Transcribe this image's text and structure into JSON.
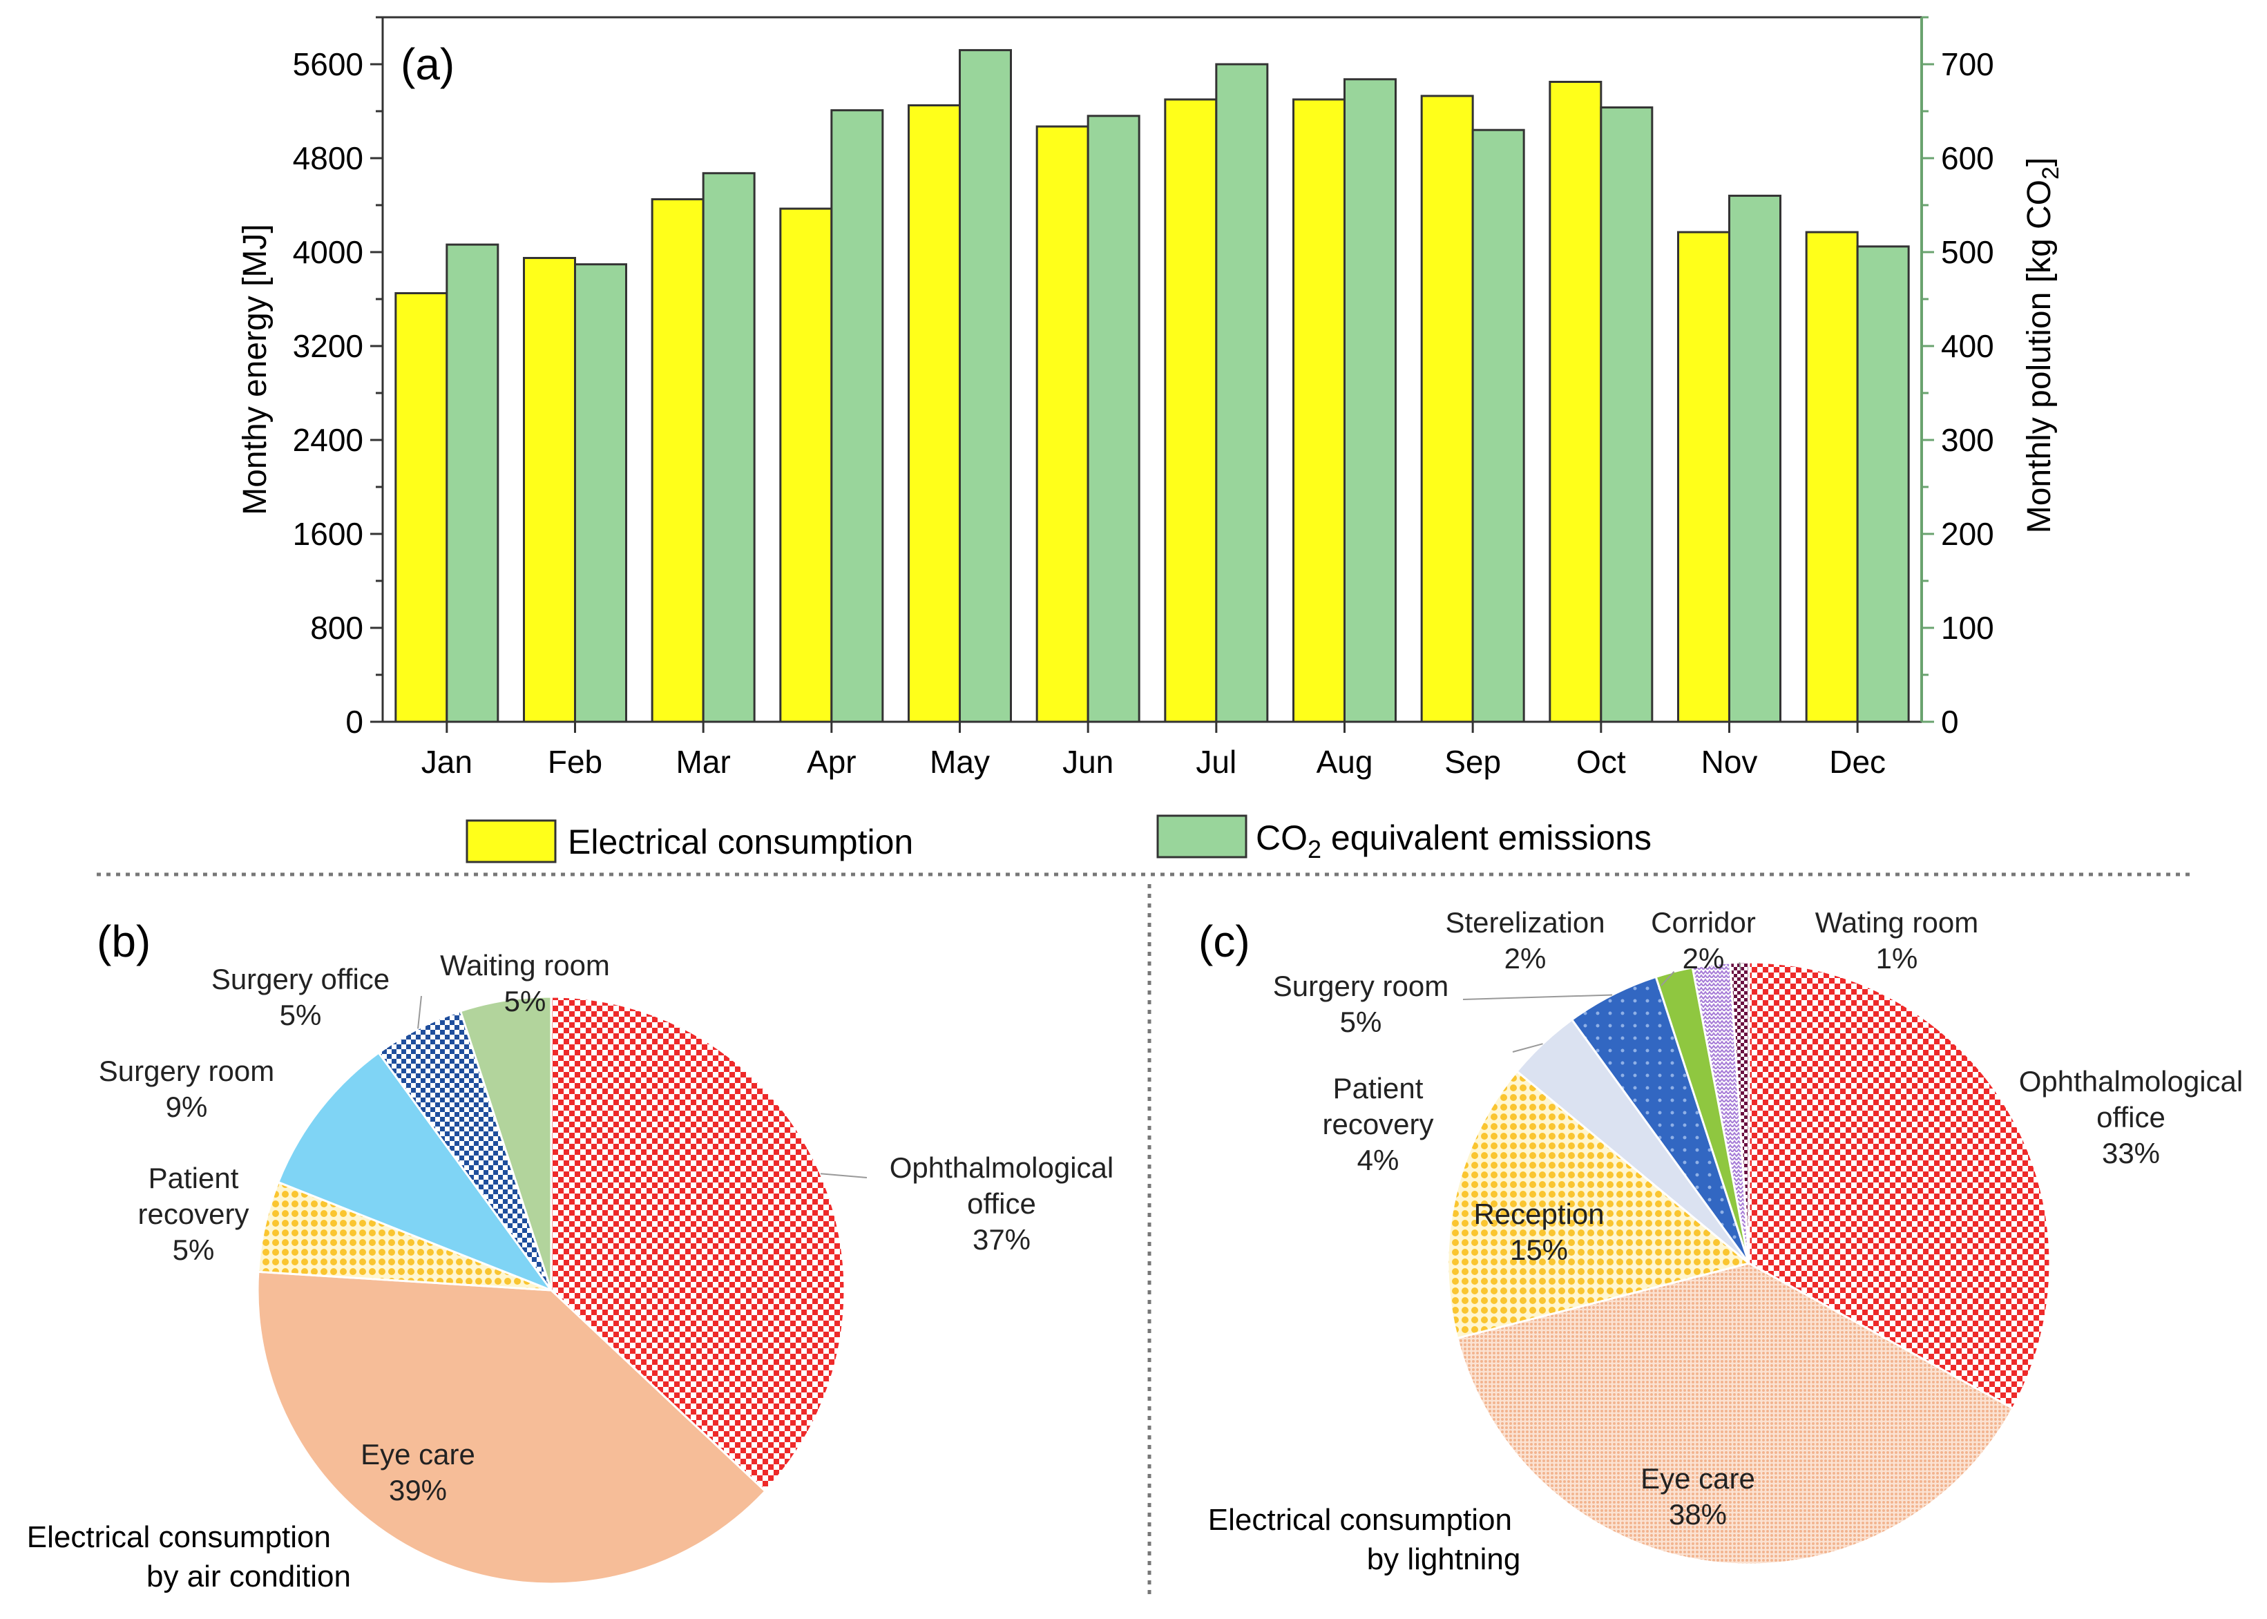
{
  "chart_data": [
    {
      "type": "bar",
      "panel_label": "(a)",
      "categories": [
        "Jan",
        "Feb",
        "Mar",
        "Apr",
        "May",
        "Jun",
        "Jul",
        "Aug",
        "Sep",
        "Oct",
        "Nov",
        "Dec"
      ],
      "series": [
        {
          "name": "Electrical consumption",
          "axis": "left",
          "color": "#ffff1a",
          "values": [
            3650,
            3950,
            4450,
            4370,
            5250,
            5070,
            5300,
            5300,
            5330,
            5450,
            4170,
            4170
          ]
        },
        {
          "name": "CO2 equivalent emissions",
          "axis": "right",
          "color": "#99d59b",
          "values": [
            508,
            487,
            584,
            651,
            715,
            645,
            700,
            684,
            630,
            654,
            560,
            506
          ]
        }
      ],
      "legend": {
        "electrical": "Electrical consumption",
        "co2_pre": "CO",
        "co2_sub": "2",
        "co2_post": " equivalent emissions",
        "placement": "bottom"
      },
      "ylabel_left": "Monthy energy [MJ]",
      "ylabel_right_pre": "Monthly polution [kg CO",
      "ylabel_right_sub": "2",
      "ylabel_right_post": "]",
      "ylim_left": [
        0,
        6000
      ],
      "ylim_right": [
        0,
        750
      ],
      "yticks_left": [
        "0",
        "800",
        "1600",
        "2400",
        "3200",
        "4000",
        "4800",
        "5600"
      ],
      "yticks_right": [
        "0",
        "100",
        "200",
        "300",
        "400",
        "500",
        "600",
        "700"
      ]
    },
    {
      "type": "pie",
      "panel_label": "(b)",
      "title_line1": "Electrical consumption",
      "title_line2": "by air condition",
      "slices": [
        {
          "name_lines": [
            "Ophthalmological",
            "office"
          ],
          "pct_label": "37%",
          "value": 37,
          "color": "#ee2a2a"
        },
        {
          "name_lines": [
            "Eye care"
          ],
          "pct_label": "39%",
          "value": 39,
          "color": "#f6bd98"
        },
        {
          "name_lines": [
            "Patient",
            "recovery"
          ],
          "pct_label": "5%",
          "value": 5,
          "color": "#fad34a"
        },
        {
          "name_lines": [
            "Surgery room"
          ],
          "pct_label": "9%",
          "value": 9,
          "color": "#7fd4f5"
        },
        {
          "name_lines": [
            "Surgery office"
          ],
          "pct_label": "5%",
          "value": 5,
          "color": "#1f4e9c"
        },
        {
          "name_lines": [
            "Waiting room"
          ],
          "pct_label": "5%",
          "value": 5,
          "color": "#b2d49c"
        }
      ]
    },
    {
      "type": "pie",
      "panel_label": "(c)",
      "title_line1": "Electrical consumption",
      "title_line2": "by lightning",
      "slices": [
        {
          "name_lines": [
            "Ophthalmological",
            "office"
          ],
          "pct_label": "33%",
          "value": 33,
          "color": "#ee2a2a"
        },
        {
          "name_lines": [
            "Eye care"
          ],
          "pct_label": "38%",
          "value": 38,
          "color": "#f6c3a6"
        },
        {
          "name_lines": [
            "Reception"
          ],
          "pct_label": "15%",
          "value": 15,
          "color": "#fbc52a"
        },
        {
          "name_lines": [
            "Patient",
            "recovery"
          ],
          "pct_label": "4%",
          "value": 4,
          "color": "#dbe2f1"
        },
        {
          "name_lines": [
            "Surgery room"
          ],
          "pct_label": "5%",
          "value": 5,
          "color": "#3267c2"
        },
        {
          "name_lines": [
            "Sterelization"
          ],
          "pct_label": "2%",
          "value": 2,
          "color": "#8fc740"
        },
        {
          "name_lines": [
            "Corridor"
          ],
          "pct_label": "2%",
          "value": 2,
          "color": "#b08fd8"
        },
        {
          "name_lines": [
            "Wating room"
          ],
          "pct_label": "1%",
          "value": 1,
          "color": "#6a1040"
        }
      ]
    }
  ]
}
